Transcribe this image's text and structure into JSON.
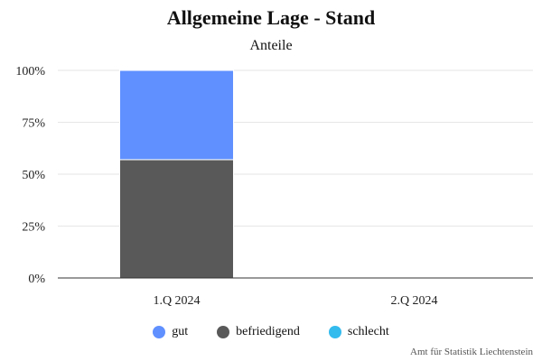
{
  "chart_data": {
    "type": "bar",
    "stacked": true,
    "title": "Allgemeine Lage - Stand",
    "subtitle": "Anteile",
    "categories": [
      "1.Q 2024",
      "2.Q 2024"
    ],
    "series": [
      {
        "name": "gut",
        "color": "#6090ff",
        "values": [
          43,
          0
        ]
      },
      {
        "name": "befriedigend",
        "color": "#595959",
        "values": [
          57,
          0
        ]
      },
      {
        "name": "schlecht",
        "color": "#33bbee",
        "values": [
          0,
          0
        ]
      }
    ],
    "ylim": [
      0,
      100
    ],
    "yticks": [
      "0%",
      "25%",
      "50%",
      "75%",
      "100%"
    ],
    "grid": true,
    "legend_position": "bottom",
    "credits": "Amt für Statistik Liechtenstein"
  }
}
